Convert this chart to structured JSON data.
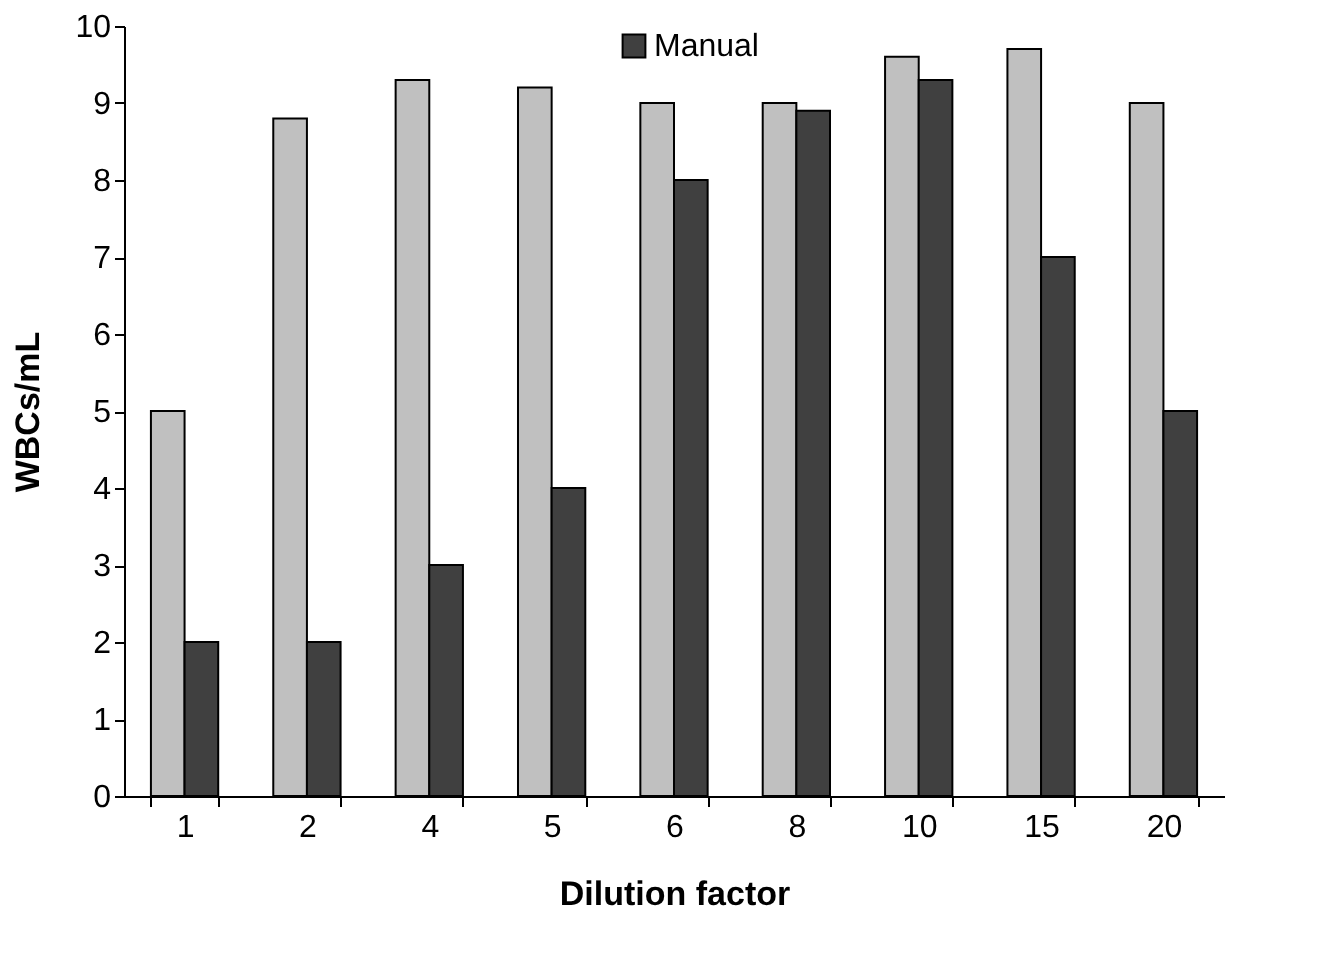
{
  "chart_data": {
    "type": "bar",
    "xlabel": "Dilution factor",
    "ylabel": "WBCs/mL",
    "categories": [
      "1",
      "2",
      "4",
      "5",
      "6",
      "8",
      "10",
      "15",
      "20"
    ],
    "series": [
      {
        "color": "#c0c0c0",
        "values": [
          5,
          8.8,
          9.3,
          9.2,
          9.0,
          9.0,
          9.6,
          9.7,
          9.0
        ]
      },
      {
        "name": "Manual",
        "color": "#404040",
        "values": [
          2,
          2,
          3,
          4,
          8,
          8.9,
          9.3,
          7,
          5
        ]
      }
    ],
    "ylim": [
      0,
      10
    ],
    "yticks": [
      0,
      1,
      2,
      3,
      4,
      5,
      6,
      7,
      8,
      9,
      10
    ],
    "grid": false,
    "legend": "top"
  }
}
